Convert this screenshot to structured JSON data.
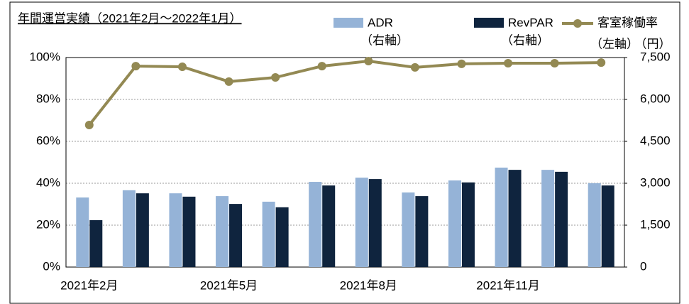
{
  "chart_data": {
    "type": "bar_line",
    "title": "年間運営実績（2021年2月～2022年1月）",
    "categories": [
      "2021年2月",
      null,
      null,
      "2021年5月",
      null,
      null,
      "2021年8月",
      null,
      null,
      "2021年11月",
      null,
      null
    ],
    "series": [
      {
        "name": "ADR",
        "axis_note": "（右軸）",
        "type": "bar",
        "axis": "y2",
        "color": "#95b3d7",
        "values": [
          2490,
          2750,
          2640,
          2540,
          2340,
          3050,
          3200,
          2670,
          3100,
          3560,
          3480,
          3000
        ]
      },
      {
        "name": "RevPAR",
        "axis_note": "（右軸）",
        "type": "bar",
        "axis": "y2",
        "color": "#0f243e",
        "values": [
          1680,
          2640,
          2520,
          2260,
          2140,
          2920,
          3150,
          2540,
          3030,
          3480,
          3410,
          2920
        ]
      },
      {
        "name": "客室稼働率",
        "axis_note": "（左軸）",
        "type": "line",
        "axis": "y",
        "color": "#938953",
        "values": [
          67.8,
          95.9,
          95.6,
          88.5,
          90.5,
          95.9,
          98.3,
          95.3,
          97.0,
          97.3,
          97.3,
          97.6
        ]
      }
    ],
    "y2_unit": "（円）",
    "ylim": [
      0,
      100
    ],
    "yticks": [
      {
        "value": 0,
        "label": "0%"
      },
      {
        "value": 20,
        "label": "20%"
      },
      {
        "value": 40,
        "label": "40%"
      },
      {
        "value": 60,
        "label": "60%"
      },
      {
        "value": 80,
        "label": "80%"
      },
      {
        "value": 100,
        "label": "100%"
      }
    ],
    "y2lim": [
      0,
      7500
    ],
    "y2ticks": [
      0,
      {
        "value": 1500,
        "label": "1,500"
      },
      {
        "value": 3000,
        "label": "3,000"
      },
      {
        "value": 4500,
        "label": "4,500"
      },
      {
        "value": 6000,
        "label": "6,000"
      },
      {
        "value": 7500,
        "label": "7,500"
      }
    ],
    "grid": true
  }
}
